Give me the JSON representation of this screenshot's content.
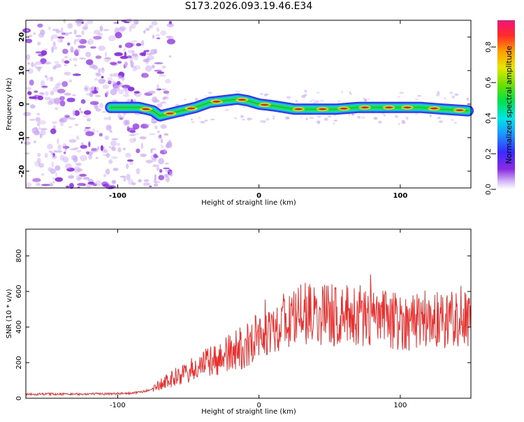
{
  "title": "S173.2026.093.19.46.E34",
  "colors": {
    "snr_line": "#e8312f",
    "ridge_center": "#e3232e",
    "noise_dot": "#8a2be2",
    "noise_dot_light": "#c9a6f4"
  },
  "chart_data": [
    {
      "type": "heatmap",
      "xlabel": "Height of straight line (km)",
      "ylabel": "Frequency (Hz)",
      "xlim": [
        -165,
        150
      ],
      "ylim": [
        -25,
        25
      ],
      "x_ticks": [
        -100,
        0,
        100
      ],
      "y_ticks": [
        -20,
        -10,
        0,
        10,
        20
      ],
      "colorbar": {
        "label": "Normalized spectral amplitude",
        "range": [
          0.0,
          0.95
        ],
        "ticks": [
          0.0,
          0.2,
          0.4,
          0.6,
          0.8
        ]
      },
      "ridge": {
        "x": [
          -105,
          -85,
          -75,
          -70,
          -65,
          -55,
          -45,
          -35,
          -25,
          -15,
          -8,
          0,
          10,
          25,
          40,
          55,
          70,
          85,
          100,
          115,
          130,
          148
        ],
        "frequency": [
          -1,
          -1,
          -2,
          -3.5,
          -3,
          -2,
          -1,
          0.5,
          1,
          1.5,
          1,
          0,
          -0.5,
          -1.5,
          -1.5,
          -1.5,
          -1,
          -1,
          -1,
          -1,
          -1.5,
          -2
        ]
      },
      "noise_region_x": [
        -165,
        -70
      ]
    },
    {
      "type": "line",
      "xlabel": "Height of straight line (km)",
      "ylabel": "SNR (10 * v/v)",
      "xlim": [
        -165,
        150
      ],
      "ylim": [
        0,
        950
      ],
      "x_ticks": [
        -100,
        0,
        100
      ],
      "y_ticks": [
        0,
        200,
        400,
        600,
        800
      ],
      "series": [
        {
          "name": "SNR",
          "x": [
            -165,
            -150,
            -130,
            -110,
            -90,
            -80,
            -75,
            -70,
            -65,
            -60,
            -55,
            -50,
            -45,
            -40,
            -35,
            -30,
            -25,
            -20,
            -15,
            -10,
            -5,
            0,
            5,
            10,
            15,
            20,
            25,
            30,
            35,
            40,
            45,
            50,
            55,
            60,
            65,
            70,
            75,
            80,
            85,
            90,
            95,
            100,
            105,
            110,
            115,
            120,
            125,
            130,
            135,
            140,
            145,
            150
          ],
          "values": [
            22,
            24,
            23,
            25,
            28,
            40,
            55,
            75,
            95,
            115,
            130,
            145,
            170,
            185,
            200,
            215,
            235,
            250,
            270,
            290,
            320,
            355,
            385,
            405,
            420,
            435,
            450,
            465,
            480,
            470,
            475,
            470,
            465,
            460,
            470,
            465,
            460,
            455,
            450,
            445,
            440,
            430,
            430,
            440,
            450,
            445,
            440,
            445,
            450,
            455,
            445,
            440
          ]
        }
      ]
    }
  ]
}
